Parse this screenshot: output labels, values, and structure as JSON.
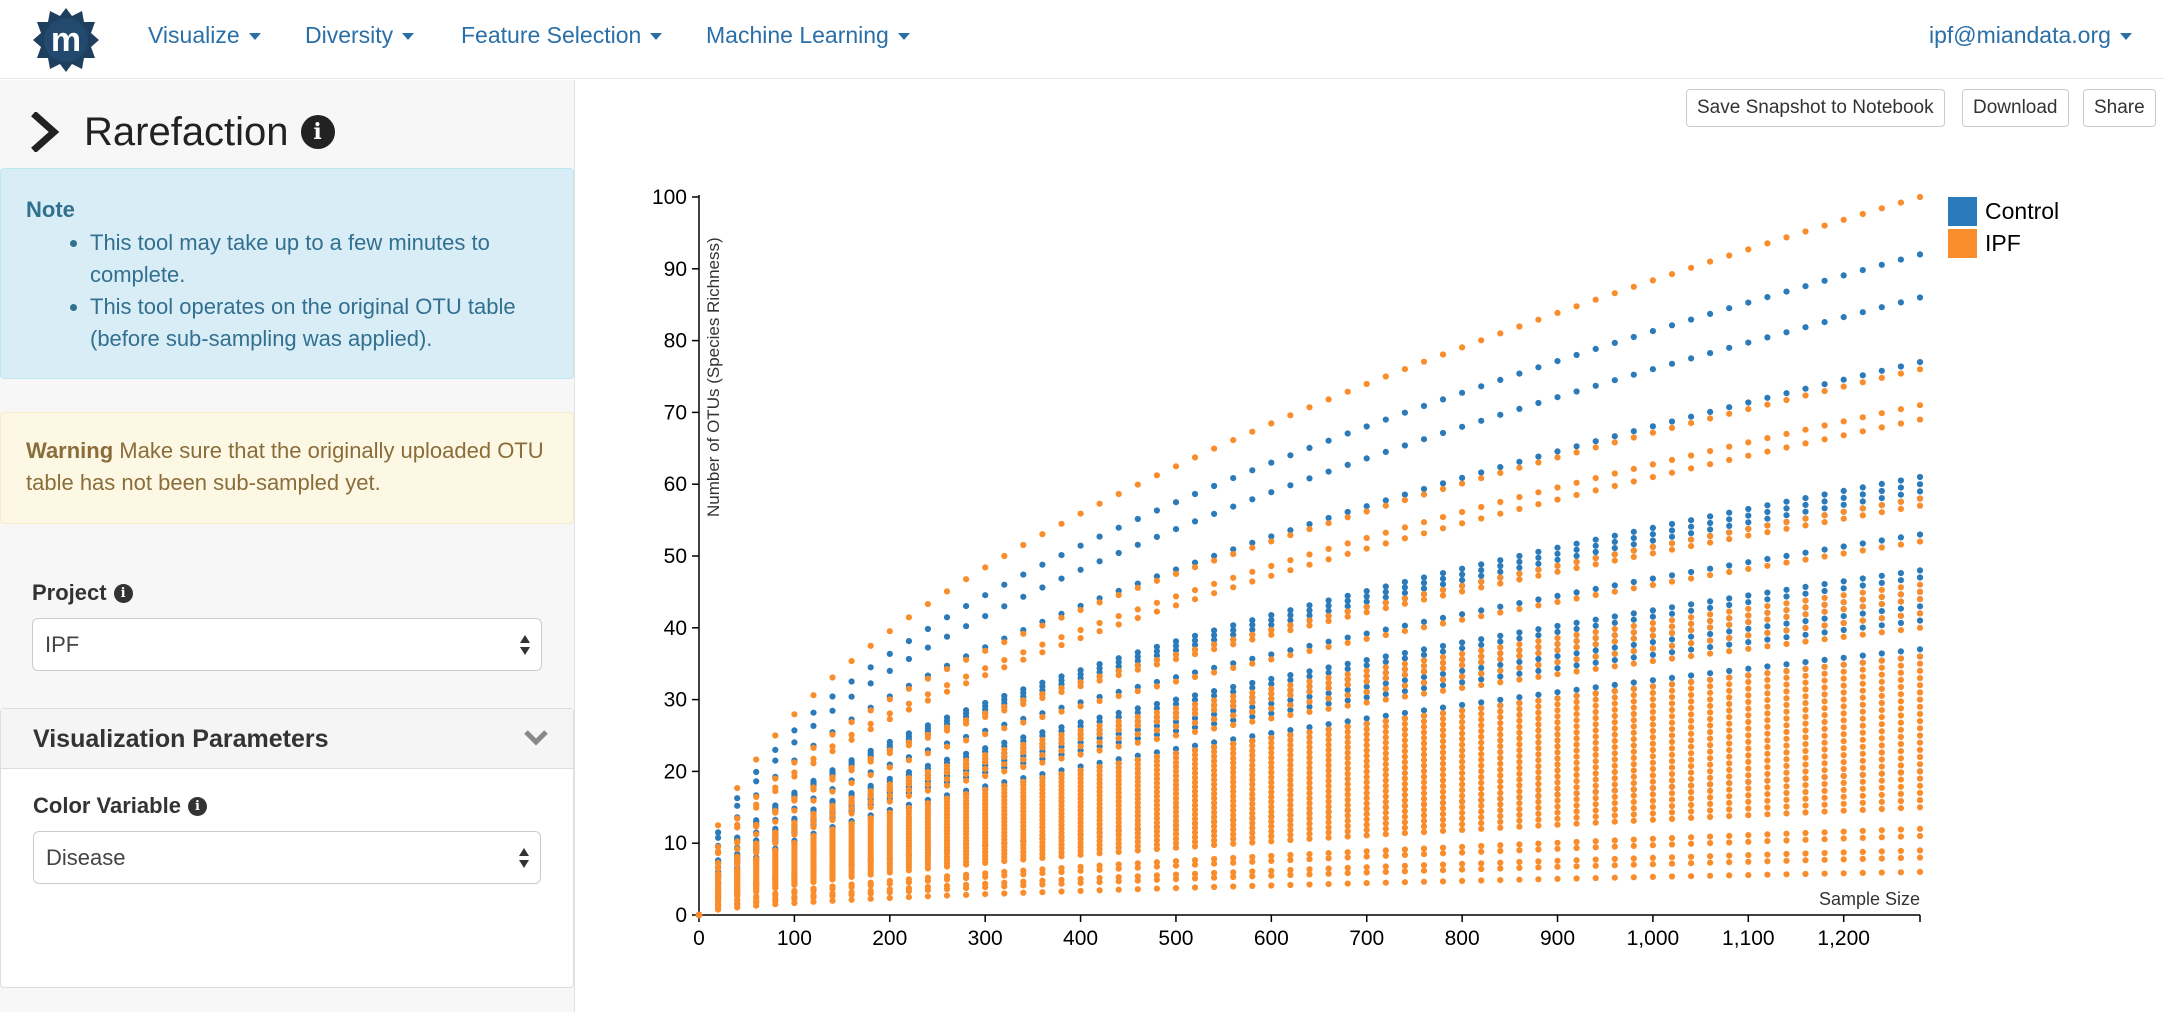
{
  "nav": {
    "items": [
      "Visualize",
      "Diversity",
      "Feature Selection",
      "Machine Learning"
    ],
    "user": "ipf@miandata.org",
    "logo_letter": "m"
  },
  "sidebar": {
    "title": "Rarefaction",
    "note": {
      "heading": "Note",
      "items": [
        "This tool may take up to a few minutes to complete.",
        "This tool operates on the original OTU table (before sub-sampling was applied)."
      ]
    },
    "warning": {
      "heading": "Warning",
      "text": " Make sure that the originally uploaded OTU table has not been sub-sampled yet."
    },
    "project": {
      "label": "Project",
      "value": "IPF"
    },
    "viz_panel": {
      "title": "Visualization Parameters",
      "color_variable": {
        "label": "Color Variable",
        "value": "Disease"
      }
    }
  },
  "toolbar": {
    "snapshot_label": "Save Snapshot to Notebook",
    "download_label": "Download",
    "share_label": "Share"
  },
  "chart_data": {
    "type": "scatter",
    "xlabel": "Sample Size",
    "ylabel": "Number of OTUs (Species Richness)",
    "xlim": [
      0,
      1280
    ],
    "ylim": [
      0,
      100
    ],
    "x_ticks": [
      "0",
      "100",
      "200",
      "300",
      "400",
      "500",
      "600",
      "700",
      "800",
      "900",
      "1,000",
      "1,100",
      "1,200"
    ],
    "y_ticks": [
      "0",
      "10",
      "20",
      "30",
      "40",
      "50",
      "60",
      "70",
      "80",
      "90",
      "100"
    ],
    "legend_position": "top-right",
    "x_step": 20,
    "series": [
      {
        "name": "Control",
        "color": "#2b7bba",
        "curves": [
          92,
          86,
          77,
          61,
          60,
          59,
          58,
          53,
          48,
          47,
          45,
          44,
          43,
          42,
          41,
          37,
          36,
          20
        ]
      },
      {
        "name": "IPF",
        "color": "#f98d2c",
        "curves": [
          100,
          76,
          71,
          69,
          58,
          57,
          52,
          46,
          45,
          44,
          42,
          40,
          36,
          35,
          34,
          33,
          32,
          31,
          30,
          29,
          28,
          27,
          26,
          25,
          24,
          23,
          22,
          21,
          20,
          19,
          18,
          17,
          16,
          15,
          12,
          11,
          9,
          8,
          6
        ]
      }
    ]
  }
}
